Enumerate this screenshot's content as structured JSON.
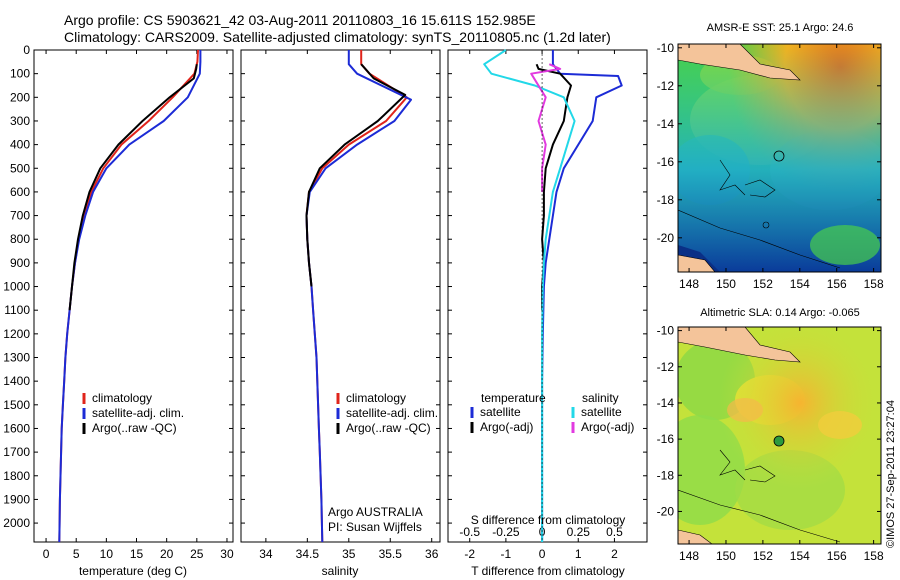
{
  "header": {
    "line1": "Argo profile: CS 5903621_42 03-Aug-2011 20110803_16 15.611S 152.985E",
    "line2": "Climatology: CARS2009. Satellite-adjusted climatology: synTS_20110805.nc (1.2d later)"
  },
  "colors": {
    "climatology": "#e0241b",
    "satellite": "#1c2bd6",
    "argo": "#000000",
    "salinity_sat": "#22d8e8",
    "salinity_argo": "#e23ae0",
    "land": "#f4c49a"
  },
  "depth_axis": {
    "ylim": [
      0,
      2080
    ],
    "ticks": [
      0,
      100,
      200,
      300,
      400,
      500,
      600,
      700,
      800,
      900,
      1000,
      1100,
      1200,
      1300,
      1400,
      1500,
      1600,
      1700,
      1800,
      1900,
      2000
    ]
  },
  "chart_data": [
    {
      "type": "line",
      "name": "temperature-panel",
      "xlabel": "temperature (deg C)",
      "xlim": [
        -2,
        31
      ],
      "xticks": [
        0,
        5,
        10,
        15,
        20,
        25,
        30
      ],
      "legend": [
        "climatology",
        "satellite-adj. clim.",
        "Argo(..raw -QC)"
      ],
      "series": [
        {
          "name": "climatology",
          "color_key": "climatology",
          "x": [
            25.2,
            25.1,
            24.6,
            21.0,
            17.0,
            12.5,
            9.5,
            7.5,
            6.3,
            5.4,
            4.8,
            4.3,
            3.9,
            3.5,
            3.2,
            3.0,
            2.8,
            2.6,
            2.5,
            2.4,
            2.3,
            2.25,
            2.2
          ],
          "y": [
            0,
            50,
            100,
            200,
            300,
            400,
            500,
            600,
            700,
            800,
            900,
            1000,
            1100,
            1200,
            1300,
            1400,
            1500,
            1600,
            1700,
            1800,
            1900,
            2000,
            2080
          ]
        },
        {
          "name": "satellite-adj. clim.",
          "color_key": "satellite",
          "x": [
            25.6,
            25.6,
            25.5,
            23.5,
            19.5,
            13.8,
            10.0,
            7.8,
            6.5,
            5.5,
            4.8,
            4.3,
            3.9,
            3.5,
            3.2,
            3.0,
            2.8,
            2.6,
            2.5,
            2.4,
            2.3,
            2.25,
            2.2
          ],
          "y": [
            0,
            50,
            100,
            200,
            300,
            400,
            500,
            600,
            700,
            800,
            900,
            1000,
            1100,
            1200,
            1300,
            1400,
            1500,
            1600,
            1700,
            1800,
            1900,
            2000,
            2080
          ]
        },
        {
          "name": "Argo(..raw -QC)",
          "color_key": "argo",
          "x": [
            25.0,
            24.9,
            24.5,
            20.5,
            16.0,
            12.0,
            9.0,
            7.2,
            6.1,
            5.3,
            4.7,
            4.3,
            3.9
          ],
          "y": [
            60,
            80,
            120,
            200,
            300,
            400,
            500,
            600,
            700,
            800,
            900,
            1000,
            1100
          ]
        }
      ]
    },
    {
      "type": "line",
      "name": "salinity-panel",
      "xlabel": "salinity",
      "xlim": [
        33.7,
        36.1
      ],
      "xticks": [
        34,
        34.5,
        35,
        35.5,
        36
      ],
      "xtick_labels": [
        "34",
        "34.5",
        "35",
        "35.5",
        "36"
      ],
      "legend": [
        "climatology",
        "satellite-adj. clim.",
        "Argo(..raw -QC)"
      ],
      "series": [
        {
          "name": "climatology",
          "color_key": "climatology",
          "x": [
            35.15,
            35.15,
            35.25,
            35.7,
            35.45,
            35.0,
            34.68,
            34.52,
            34.49,
            34.5,
            34.52,
            34.55,
            34.57,
            34.59,
            34.61,
            34.62,
            34.63,
            34.64,
            34.65,
            34.66,
            34.67,
            34.68
          ],
          "y": [
            0,
            60,
            100,
            200,
            300,
            400,
            500,
            600,
            700,
            800,
            900,
            1000,
            1100,
            1200,
            1300,
            1400,
            1500,
            1600,
            1700,
            1800,
            1900,
            2080
          ]
        },
        {
          "name": "satellite-adj. clim.",
          "color_key": "satellite",
          "x": [
            35.0,
            35.0,
            35.1,
            35.75,
            35.55,
            35.1,
            34.72,
            34.53,
            34.49,
            34.5,
            34.52,
            34.55,
            34.57,
            34.59,
            34.61,
            34.62,
            34.63,
            34.64,
            34.65,
            34.66,
            34.67,
            34.68
          ],
          "y": [
            0,
            60,
            100,
            210,
            300,
            400,
            500,
            600,
            700,
            800,
            900,
            1000,
            1100,
            1200,
            1300,
            1400,
            1500,
            1600,
            1700,
            1800,
            1900,
            2080
          ]
        },
        {
          "name": "Argo(..raw -QC)",
          "color_key": "argo",
          "x": [
            35.15,
            35.2,
            35.3,
            35.68,
            35.35,
            34.95,
            34.65,
            34.52,
            34.49,
            34.5,
            34.52,
            34.55
          ],
          "y": [
            60,
            80,
            120,
            190,
            300,
            400,
            500,
            600,
            700,
            800,
            900,
            1000
          ]
        }
      ],
      "annotation": [
        "Argo AUSTRALIA",
        "PI: Susan Wijffels"
      ]
    },
    {
      "type": "line",
      "name": "difference-panel",
      "xlabel": "T difference from climatology",
      "xlim": [
        -2.6,
        2.9
      ],
      "xticks": [
        -2,
        -1,
        0,
        1,
        2
      ],
      "top_label": "S difference from climatology",
      "s_ticks": [
        -0.5,
        -0.25,
        0,
        0.25,
        0.5
      ],
      "s_tick_labels": [
        "-0.5",
        "-0.25",
        "0",
        "0.25",
        "0.5"
      ],
      "s_scale": 4,
      "legend_t_title": "temperature",
      "legend_s_title": "salinity",
      "legend": [
        "satellite",
        "Argo(-adj)",
        "satellite",
        "Argo(-adj)"
      ],
      "series": [
        {
          "name": "T satellite",
          "color_key": "satellite",
          "x": [
            0.3,
            0.3,
            0.5,
            2.1,
            2.2,
            1.5,
            1.4,
            1.0,
            0.6,
            0.4,
            0.3,
            0.2,
            0.1,
            0.05,
            0.02,
            0,
            0,
            0,
            0
          ],
          "y": [
            0,
            60,
            100,
            110,
            150,
            200,
            300,
            400,
            500,
            600,
            700,
            800,
            900,
            1000,
            1200,
            1400,
            1600,
            1800,
            2080
          ]
        },
        {
          "name": "T Argo(-adj)",
          "color_key": "argo",
          "x": [
            -0.15,
            -0.1,
            0.5,
            0.8,
            0.7,
            0.6,
            0.3,
            0.1,
            0.05,
            0.05,
            0.0,
            0.05,
            0.0,
            0.0
          ],
          "y": [
            60,
            80,
            100,
            150,
            200,
            300,
            400,
            500,
            600,
            700,
            800,
            900,
            1000,
            1100
          ]
        },
        {
          "name": "S satellite",
          "color_key": "salinity_sat",
          "x": [
            -1.0,
            -1.6,
            -1.4,
            -0.2,
            0.6,
            0.9,
            0.7,
            0.5,
            0.3,
            0.2,
            0.1,
            0.05,
            0.02,
            0,
            0,
            0,
            0,
            0
          ],
          "y": [
            0,
            60,
            100,
            150,
            200,
            300,
            400,
            500,
            600,
            700,
            800,
            900,
            1000,
            1200,
            1400,
            1600,
            1800,
            2080
          ]
        },
        {
          "name": "S Argo(-adj)",
          "color_key": "salinity_argo",
          "x": [
            0.2,
            0.5,
            -0.3,
            0.1,
            -0.1,
            0.1,
            0.0,
            0.0
          ],
          "y": [
            60,
            80,
            100,
            200,
            300,
            400,
            500,
            600
          ]
        }
      ]
    },
    {
      "type": "heatmap",
      "name": "sst-map",
      "title": "AMSR-E SST: 25.1 Argo: 24.6",
      "xticks": [
        148,
        150,
        152,
        154,
        156,
        158
      ],
      "yticks": [
        -10,
        -12,
        -14,
        -16,
        -18,
        -20
      ],
      "xlim": [
        147.4,
        158.4
      ],
      "ylim": [
        -21.8,
        -9.8
      ],
      "marker": {
        "lon": 152.985,
        "lat": -15.611
      }
    },
    {
      "type": "heatmap",
      "name": "sla-map",
      "title": "Altimetric SLA: 0.14 Argo: -0.065",
      "xticks": [
        148,
        150,
        152,
        154,
        156,
        158
      ],
      "yticks": [
        -10,
        -12,
        -14,
        -16,
        -18,
        -20
      ],
      "xlim": [
        147.4,
        158.4
      ],
      "ylim": [
        -21.8,
        -9.8
      ],
      "marker": {
        "lon": 152.985,
        "lat": -15.611
      }
    }
  ],
  "footer": {
    "credit": "©IMOS 27-Sep-2011 23:27:04"
  }
}
